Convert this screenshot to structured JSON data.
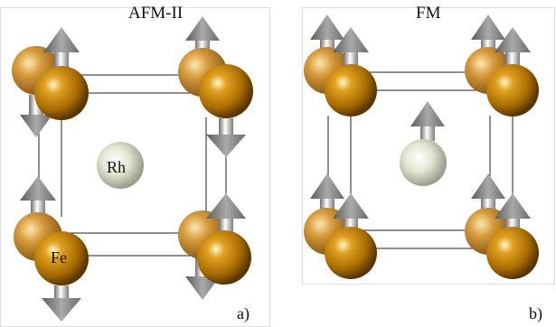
{
  "panels": [
    {
      "title": "AFM-II",
      "corner_label": "a)",
      "center_label": "Rh",
      "corner_atom_label": "Fe"
    },
    {
      "title": "FM",
      "corner_label": "b)"
    }
  ],
  "colors": {
    "fe_atom": "#b8860b",
    "fe_atom_back": "#d4a04a",
    "rh_atom": "#d8dcc4",
    "arrow": "#8a8a8a",
    "arrow_dark": "#5e5e5e",
    "edge": "#222222"
  },
  "spin_states": {
    "AFM-II": [
      "up",
      "up",
      "down",
      "up",
      "up",
      "up",
      "up",
      "up",
      "down",
      "down"
    ],
    "FM": [
      "up",
      "up",
      "up",
      "up",
      "up",
      "up",
      "up",
      "up",
      "up"
    ]
  }
}
